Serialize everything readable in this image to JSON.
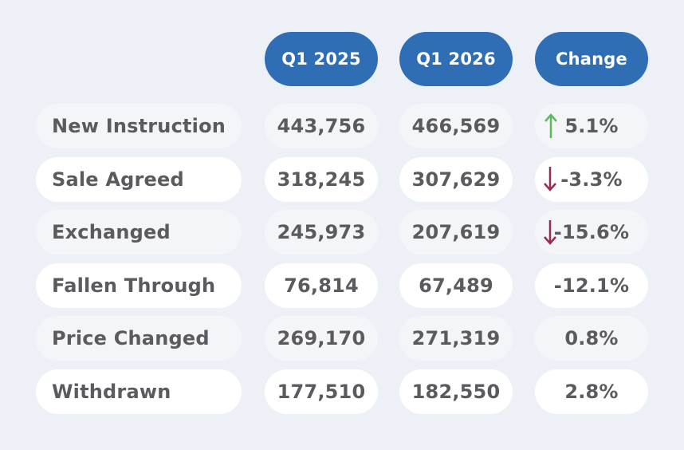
{
  "table": {
    "header": [
      "Q1 2025",
      "Q1 2026",
      "Change"
    ],
    "rows": [
      [
        "New Instruction",
        "443,756",
        "466,569",
        "5.1%"
      ],
      [
        "Sale Agreed",
        "318,245",
        "307,629",
        "-3.3%"
      ],
      [
        "Exchanged",
        "245,973",
        "207,619",
        "-15.6%"
      ],
      [
        "Fallen Through",
        "76,814",
        "67,489",
        "-12.1%"
      ],
      [
        "Price Changed",
        "269,170",
        "271,319",
        "0.8%"
      ],
      [
        "Withdrawn",
        "177,510",
        "182,550",
        "2.8%"
      ]
    ]
  }
}
